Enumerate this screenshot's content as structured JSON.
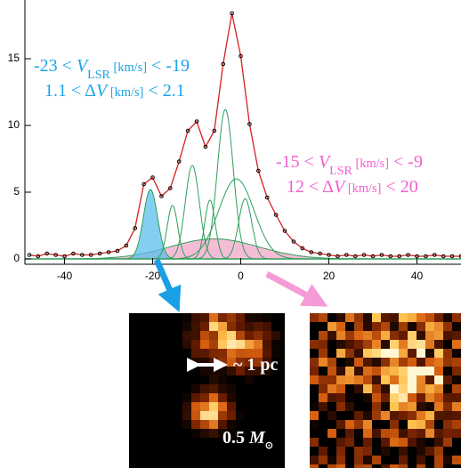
{
  "chart_data": {
    "type": "spectrum",
    "x": [
      -48,
      -46,
      -44,
      -42,
      -40,
      -38,
      -36,
      -34,
      -32,
      -30,
      -28,
      -26,
      -24,
      -22,
      -20,
      -18,
      -16,
      -14,
      -12,
      -10,
      -8,
      -6,
      -4,
      -2,
      0,
      2,
      4,
      6,
      8,
      10,
      12,
      14,
      16,
      18,
      20,
      22,
      24,
      26,
      28,
      30,
      32,
      34,
      36,
      38,
      40,
      42,
      44,
      46,
      48,
      50
    ],
    "values": [
      0.3,
      0.2,
      0.4,
      0.3,
      0.2,
      0.4,
      0.3,
      0.3,
      0.4,
      0.5,
      0.6,
      1.0,
      2.3,
      5.6,
      6.1,
      4.7,
      5.3,
      7.3,
      9.6,
      10.3,
      8.4,
      9.6,
      14.6,
      18.4,
      15.2,
      10.1,
      6.6,
      4.6,
      3.3,
      2.1,
      1.3,
      0.8,
      0.5,
      0.4,
      0.3,
      0.2,
      0.3,
      0.2,
      0.3,
      0.2,
      0.3,
      0.2,
      0.2,
      0.3,
      0.2,
      0.2,
      0.3,
      0.2,
      0.2,
      0.2
    ],
    "point_color": "#000000",
    "line_color": "#d62020",
    "components": [
      {
        "center": -6,
        "amplitude": 1.5,
        "sigma": 10,
        "color": "#f3a6c8"
      },
      {
        "center": -20.5,
        "amplitude": 5.2,
        "sigma": 1.6,
        "color": "#5bbfe9"
      },
      {
        "center": -15.5,
        "amplitude": 4.0,
        "sigma": 1.2,
        "color": "#2e9e5b"
      },
      {
        "center": -11,
        "amplitude": 7.0,
        "sigma": 1.6,
        "color": "#2e9e5b"
      },
      {
        "center": -7,
        "amplitude": 4.4,
        "sigma": 1.2,
        "color": "#2e9e5b"
      },
      {
        "center": -3.5,
        "amplitude": 11.2,
        "sigma": 1.8,
        "color": "#2e9e5b"
      },
      {
        "center": -1,
        "amplitude": 6.0,
        "sigma": 4.0,
        "color": "#2e9e5b"
      },
      {
        "center": 1,
        "amplitude": 4.5,
        "sigma": 1.5,
        "color": "#2e9e5b"
      }
    ],
    "xlim": [
      -49,
      50
    ],
    "ylim": [
      -0.4,
      19.4
    ],
    "xticks": [
      -40,
      -20,
      0,
      20,
      40
    ],
    "yticks": [
      0,
      5,
      10,
      15
    ],
    "annotations": [
      {
        "color": "#1aa3e6",
        "lines": [
          [
            {
              "text": "-23 < "
            },
            {
              "text": "V",
              "style": "italic"
            },
            {
              "text": "LSR",
              "style": "sub"
            },
            {
              "text": " [km/s]",
              "style": "small"
            },
            {
              "text": " < -19"
            }
          ],
          [
            {
              "text": "1.1 < Δ"
            },
            {
              "text": "V",
              "style": "italic"
            },
            {
              "text": " [km/s]",
              "style": "small"
            },
            {
              "text": " < 2.1"
            }
          ]
        ]
      },
      {
        "color": "#f15fd0",
        "lines": [
          [
            {
              "text": "-15 < "
            },
            {
              "text": "V",
              "style": "italic"
            },
            {
              "text": "LSR",
              "style": "sub"
            },
            {
              "text": " [km/s]",
              "style": "small"
            },
            {
              "text": " < -9"
            }
          ],
          [
            {
              "text": "12 < Δ"
            },
            {
              "text": "V",
              "style": "italic"
            },
            {
              "text": " [km/s]",
              "style": "small"
            },
            {
              "text": " < 20"
            }
          ]
        ]
      }
    ],
    "map_labels": [
      [
        {
          "text": "~ 1 pc"
        }
      ],
      [
        {
          "text": "0.5 "
        },
        {
          "text": "M",
          "style": "italic"
        },
        {
          "text": "⊙",
          "style": "sub"
        }
      ]
    ]
  }
}
